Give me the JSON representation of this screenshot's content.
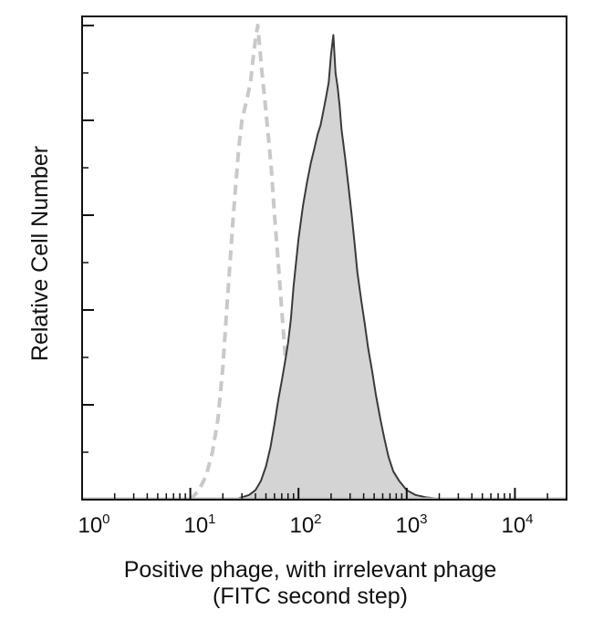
{
  "chart_data": {
    "type": "area",
    "title": "",
    "xlabel_line1": "Positive phage, with irrelevant phage",
    "xlabel_line2": "(FITC second step)",
    "ylabel": "Relative Cell Number",
    "x_scale": "log",
    "xlim": [
      1,
      30000
    ],
    "ylim": [
      0,
      1
    ],
    "grid": false,
    "legend": "none",
    "x_ticks": [
      {
        "base": "10",
        "exp": "0",
        "value": 1
      },
      {
        "base": "10",
        "exp": "1",
        "value": 10
      },
      {
        "base": "10",
        "exp": "2",
        "value": 100
      },
      {
        "base": "10",
        "exp": "3",
        "value": 1000
      },
      {
        "base": "10",
        "exp": "4",
        "value": 10000
      }
    ],
    "y_major_ticks": [
      0,
      0.2,
      0.4,
      0.6,
      0.8,
      1.0
    ],
    "series": [
      {
        "style": "dashed-gray",
        "color": "#c9c9c9",
        "x": [
          10,
          12,
          14,
          16,
          18,
          20,
          22,
          25,
          28,
          30,
          33,
          36,
          38,
          40,
          42,
          44,
          46,
          48,
          52,
          56,
          60,
          65,
          70,
          75,
          80,
          90,
          100,
          110,
          120,
          140,
          160,
          200,
          300
        ],
        "y": [
          0.0,
          0.02,
          0.05,
          0.1,
          0.17,
          0.28,
          0.42,
          0.6,
          0.74,
          0.8,
          0.84,
          0.88,
          0.93,
          0.97,
          1.0,
          0.95,
          0.9,
          0.86,
          0.78,
          0.7,
          0.6,
          0.5,
          0.4,
          0.31,
          0.22,
          0.14,
          0.09,
          0.06,
          0.04,
          0.02,
          0.01,
          0.005,
          0.0
        ]
      },
      {
        "style": "solid-filled",
        "color": "#3a3a3a",
        "fill": "#d4d4d4",
        "x": [
          25,
          30,
          35,
          40,
          45,
          50,
          55,
          60,
          65,
          70,
          75,
          80,
          85,
          90,
          100,
          110,
          120,
          130,
          140,
          150,
          160,
          170,
          180,
          190,
          200,
          210,
          220,
          230,
          240,
          250,
          270,
          290,
          310,
          330,
          350,
          380,
          410,
          440,
          480,
          520,
          570,
          620,
          680,
          750,
          850,
          1000,
          1200,
          1500,
          2000,
          2500
        ],
        "y": [
          0.0,
          0.005,
          0.01,
          0.02,
          0.04,
          0.07,
          0.11,
          0.16,
          0.21,
          0.25,
          0.29,
          0.33,
          0.38,
          0.45,
          0.55,
          0.62,
          0.67,
          0.71,
          0.74,
          0.77,
          0.79,
          0.82,
          0.85,
          0.88,
          0.94,
          0.98,
          0.9,
          0.87,
          0.83,
          0.78,
          0.72,
          0.66,
          0.6,
          0.54,
          0.48,
          0.42,
          0.37,
          0.32,
          0.27,
          0.22,
          0.17,
          0.13,
          0.09,
          0.06,
          0.04,
          0.02,
          0.01,
          0.005,
          0.002,
          0.0
        ]
      }
    ]
  }
}
